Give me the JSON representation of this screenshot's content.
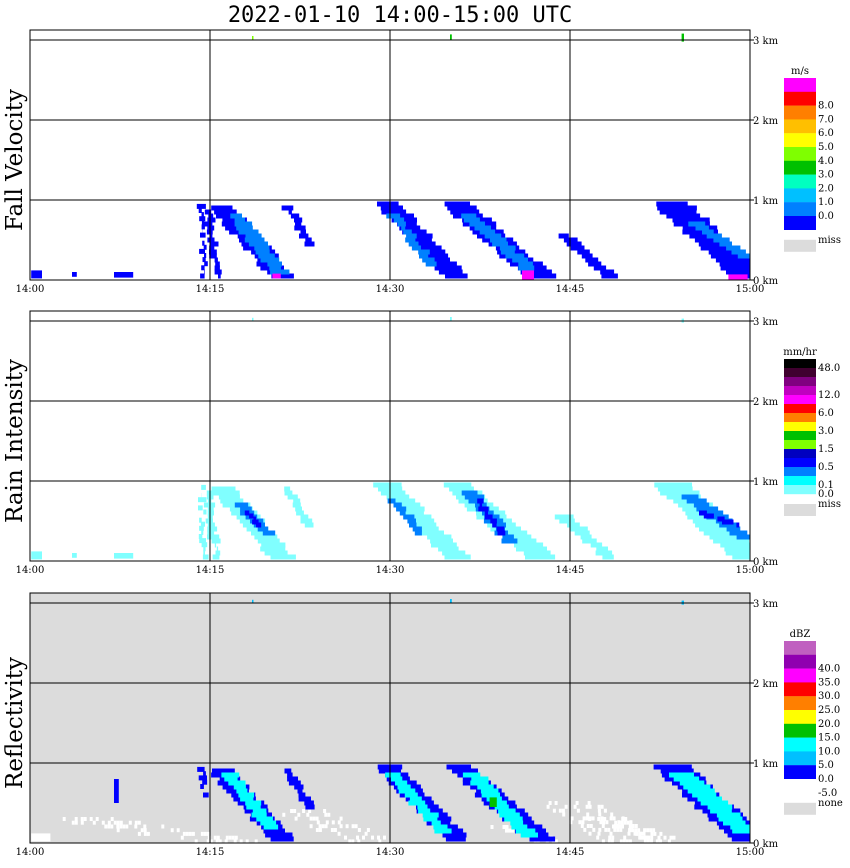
{
  "title": "2022-01-10  14:00-15:00 UTC",
  "colors": {
    "frame": "#000000",
    "missing_bg": "#dcdcdc",
    "background": "#ffffff"
  },
  "chart_data": [
    {
      "type": "heatmap",
      "ylabel": "Fall Velocity",
      "x_ticks": [
        "14:00",
        "14:15",
        "14:30",
        "14:45",
        "15:00"
      ],
      "y_ticks": [
        "0 km",
        "1 km",
        "2 km",
        "3 km"
      ],
      "xlim": [
        "14:00",
        "15:00"
      ],
      "ylim": [
        0,
        3.1
      ],
      "grid": true,
      "background": "#ffffff",
      "legend": {
        "unit": "m/s",
        "position": "right",
        "bins": [
          {
            "label": "",
            "color": "#ff00ff"
          },
          {
            "label": "8.0",
            "color": "#ff0000"
          },
          {
            "label": "7.0",
            "color": "#ff7f00"
          },
          {
            "label": "6.0",
            "color": "#ffbf00"
          },
          {
            "label": "5.0",
            "color": "#ffff00"
          },
          {
            "label": "4.0",
            "color": "#7fff00"
          },
          {
            "label": "3.0",
            "color": "#00c000"
          },
          {
            "label": "2.0",
            "color": "#00ffc0"
          },
          {
            "label": "1.0",
            "color": "#00c0ff"
          },
          {
            "label": "0.0",
            "color": "#0080ff"
          },
          {
            "label": "",
            "color": "#0000ff"
          }
        ],
        "missing_label": "miss",
        "missing_color": "#dcdcdc"
      },
      "fall_streaks": [
        {
          "t0": 14.3,
          "h0": 0.92,
          "t1": 14.5,
          "h1": 0.05,
          "w": 0.3,
          "color": "#0000ff"
        },
        {
          "t0": 14.9,
          "h0": 0.85,
          "t1": 15.3,
          "h1": 0.3,
          "w": 0.6,
          "color": "#0000ff"
        },
        {
          "t0": 15.3,
          "h0": 0.35,
          "t1": 15.7,
          "h1": 0.05,
          "w": 0.5,
          "color": "#0000ff"
        },
        {
          "t0": 16.0,
          "h0": 0.9,
          "t1": 21.0,
          "h1": 0.05,
          "w": 2.0,
          "color": "#0000ff"
        },
        {
          "t0": 17.2,
          "h0": 0.8,
          "t1": 20.8,
          "h1": 0.1,
          "w": 1.2,
          "color": "#0080ff"
        },
        {
          "t0": 21.5,
          "h0": 0.9,
          "t1": 23.3,
          "h1": 0.45,
          "w": 0.7,
          "color": "#0000ff"
        },
        {
          "t0": 29.8,
          "h0": 0.95,
          "t1": 35.5,
          "h1": 0.05,
          "w": 2.0,
          "color": "#0000ff"
        },
        {
          "t0": 30.3,
          "h0": 0.8,
          "t1": 33.5,
          "h1": 0.2,
          "w": 0.8,
          "color": "#0080ff"
        },
        {
          "t0": 35.5,
          "h0": 0.95,
          "t1": 42.5,
          "h1": 0.05,
          "w": 2.4,
          "color": "#0000ff"
        },
        {
          "t0": 36.5,
          "h0": 0.8,
          "t1": 41.5,
          "h1": 0.15,
          "w": 1.3,
          "color": "#0080ff"
        },
        {
          "t0": 44.5,
          "h0": 0.55,
          "t1": 48.3,
          "h1": 0.05,
          "w": 1.2,
          "color": "#0000ff"
        },
        {
          "t0": 53.5,
          "h0": 0.95,
          "t1": 60.0,
          "h1": 0.05,
          "w": 3.0,
          "color": "#0000ff"
        },
        {
          "t0": 55.5,
          "h0": 0.7,
          "t1": 59.5,
          "h1": 0.3,
          "w": 1.4,
          "color": "#0080ff"
        }
      ],
      "spots": [
        {
          "t": 0.1,
          "h": 0.02,
          "w": 0.9,
          "dh": 0.1,
          "color": "#0000ff"
        },
        {
          "t": 3.5,
          "h": 0.04,
          "w": 0.4,
          "dh": 0.06,
          "color": "#0000ff"
        },
        {
          "t": 7.0,
          "h": 0.03,
          "w": 1.6,
          "dh": 0.07,
          "color": "#0000ff"
        },
        {
          "t": 20.2,
          "h": 0.02,
          "w": 0.7,
          "dh": 0.06,
          "color": "#ff00ff"
        },
        {
          "t": 41.0,
          "h": 0.0,
          "w": 1.0,
          "dh": 0.12,
          "color": "#ff00ff"
        },
        {
          "t": 58.2,
          "h": 0.0,
          "w": 1.6,
          "dh": 0.07,
          "color": "#ff00ff"
        },
        {
          "t": 18.5,
          "h": 3.0,
          "w": 0.1,
          "dh": 0.05,
          "color": "#7fff00"
        },
        {
          "t": 35.0,
          "h": 3.0,
          "w": 0.15,
          "dh": 0.07,
          "color": "#00c000"
        },
        {
          "t": 54.3,
          "h": 2.98,
          "w": 0.2,
          "dh": 0.1,
          "color": "#00c000"
        }
      ]
    },
    {
      "type": "heatmap",
      "ylabel": "Rain Intensity",
      "x_ticks": [
        "14:00",
        "14:15",
        "14:30",
        "14:45",
        "15:00"
      ],
      "y_ticks": [
        "0 km",
        "1 km",
        "2 km",
        "3 km"
      ],
      "xlim": [
        "14:00",
        "15:00"
      ],
      "ylim": [
        0,
        3.1
      ],
      "grid": true,
      "background": "#ffffff",
      "legend": {
        "unit": "mm/hr",
        "position": "right",
        "bins": [
          {
            "label": "48.0",
            "color": "#000000"
          },
          {
            "label": "",
            "color": "#40002f"
          },
          {
            "label": "",
            "color": "#800080"
          },
          {
            "label": "12.0",
            "color": "#c000c0"
          },
          {
            "label": "",
            "color": "#ff00ff"
          },
          {
            "label": "6.0",
            "color": "#ff0000"
          },
          {
            "label": "",
            "color": "#ff7f00"
          },
          {
            "label": "3.0",
            "color": "#ffff00"
          },
          {
            "label": "",
            "color": "#00c000"
          },
          {
            "label": "1.5",
            "color": "#7fff00"
          },
          {
            "label": "",
            "color": "#0000c0"
          },
          {
            "label": "0.5",
            "color": "#0000ff"
          },
          {
            "label": "",
            "color": "#0080ff"
          },
          {
            "label": "0.1",
            "color": "#00ffff"
          },
          {
            "label": "0.0",
            "color": "#80ffff"
          }
        ],
        "missing_label": "miss",
        "missing_color": "#dcdcdc"
      },
      "fall_streaks": [
        {
          "t0": 14.3,
          "h0": 0.92,
          "t1": 14.5,
          "h1": 0.05,
          "w": 0.3,
          "color": "#80ffff"
        },
        {
          "t0": 14.9,
          "h0": 0.85,
          "t1": 15.3,
          "h1": 0.3,
          "w": 0.6,
          "color": "#80ffff"
        },
        {
          "t0": 15.3,
          "h0": 0.35,
          "t1": 15.7,
          "h1": 0.05,
          "w": 0.5,
          "color": "#80ffff"
        },
        {
          "t0": 16.0,
          "h0": 0.9,
          "t1": 21.0,
          "h1": 0.05,
          "w": 2.0,
          "color": "#80ffff"
        },
        {
          "t0": 17.5,
          "h0": 0.7,
          "t1": 19.8,
          "h1": 0.35,
          "w": 1.0,
          "color": "#0080ff"
        },
        {
          "t0": 18.2,
          "h0": 0.6,
          "t1": 19.0,
          "h1": 0.45,
          "w": 0.4,
          "color": "#0000ff"
        },
        {
          "t0": 21.5,
          "h0": 0.9,
          "t1": 23.3,
          "h1": 0.45,
          "w": 0.7,
          "color": "#80ffff"
        },
        {
          "t0": 29.8,
          "h0": 0.95,
          "t1": 35.5,
          "h1": 0.05,
          "w": 2.0,
          "color": "#80ffff"
        },
        {
          "t0": 30.3,
          "h0": 0.75,
          "t1": 32.5,
          "h1": 0.35,
          "w": 0.8,
          "color": "#0080ff"
        },
        {
          "t0": 35.5,
          "h0": 0.95,
          "t1": 42.5,
          "h1": 0.05,
          "w": 2.4,
          "color": "#80ffff"
        },
        {
          "t0": 36.8,
          "h0": 0.85,
          "t1": 40.0,
          "h1": 0.25,
          "w": 1.2,
          "color": "#0080ff"
        },
        {
          "t0": 37.4,
          "h0": 0.75,
          "t1": 39.2,
          "h1": 0.35,
          "w": 0.6,
          "color": "#0000ff"
        },
        {
          "t0": 44.5,
          "h0": 0.55,
          "t1": 48.3,
          "h1": 0.05,
          "w": 1.2,
          "color": "#80ffff"
        },
        {
          "t0": 53.5,
          "h0": 0.95,
          "t1": 60.0,
          "h1": 0.05,
          "w": 3.0,
          "color": "#80ffff"
        },
        {
          "t0": 55.0,
          "h0": 0.8,
          "t1": 59.5,
          "h1": 0.3,
          "w": 1.5,
          "color": "#0080ff"
        },
        {
          "t0": 56.0,
          "h0": 0.6,
          "t1": 59.0,
          "h1": 0.45,
          "w": 0.7,
          "color": "#0000ff"
        }
      ],
      "spots": [
        {
          "t": 0.1,
          "h": 0.02,
          "w": 0.9,
          "dh": 0.1,
          "color": "#80ffff"
        },
        {
          "t": 3.5,
          "h": 0.04,
          "w": 0.4,
          "dh": 0.06,
          "color": "#80ffff"
        },
        {
          "t": 7.0,
          "h": 0.03,
          "w": 1.6,
          "dh": 0.07,
          "color": "#80ffff"
        },
        {
          "t": 18.5,
          "h": 3.0,
          "w": 0.1,
          "dh": 0.04,
          "color": "#80ffff"
        },
        {
          "t": 35.0,
          "h": 3.0,
          "w": 0.15,
          "dh": 0.05,
          "color": "#80ffff"
        },
        {
          "t": 54.3,
          "h": 2.98,
          "w": 0.2,
          "dh": 0.05,
          "color": "#80ffff"
        }
      ]
    },
    {
      "type": "heatmap",
      "ylabel": "Reflectivity",
      "x_ticks": [
        "14:00",
        "14:15",
        "14:30",
        "14:45",
        "15:00"
      ],
      "y_ticks": [
        "0 km",
        "1 km",
        "2 km",
        "3 km"
      ],
      "xlim": [
        "14:00",
        "15:00"
      ],
      "ylim": [
        0,
        3.1
      ],
      "grid": true,
      "background": "#dcdcdc",
      "legend": {
        "unit": "dBZ",
        "position": "right",
        "bins": [
          {
            "label": "",
            "color": "#c060c0"
          },
          {
            "label": "40.0",
            "color": "#9000b0"
          },
          {
            "label": "35.0",
            "color": "#ff00ff"
          },
          {
            "label": "30.0",
            "color": "#ff0000"
          },
          {
            "label": "25.0",
            "color": "#ff7f00"
          },
          {
            "label": "20.0",
            "color": "#ffff00"
          },
          {
            "label": "15.0",
            "color": "#00c000"
          },
          {
            "label": "10.0",
            "color": "#00ffff"
          },
          {
            "label": "5.0",
            "color": "#00c0ff"
          },
          {
            "label": "0.0",
            "color": "#0000ff"
          },
          {
            "label": "-5.0",
            "color": "#ffffff"
          }
        ],
        "missing_label": "none",
        "missing_color": "#dcdcdc"
      },
      "fall_streaks": [
        {
          "t0": 4.5,
          "h0": 0.3,
          "t1": 16.0,
          "h1": 0.02,
          "w": 6.0,
          "color": "#ffffff",
          "sparse": true
        },
        {
          "t0": 22.5,
          "h0": 0.4,
          "t1": 28.0,
          "h1": 0.02,
          "w": 4.0,
          "color": "#ffffff",
          "sparse": true
        },
        {
          "t0": 40.0,
          "h0": 0.2,
          "t1": 43.0,
          "h1": 0.02,
          "w": 3.0,
          "color": "#ffffff",
          "sparse": true
        },
        {
          "t0": 45.0,
          "h0": 0.5,
          "t1": 50.0,
          "h1": 0.02,
          "w": 5.0,
          "color": "#ffffff",
          "sparse": true
        },
        {
          "t0": 48.0,
          "h0": 0.3,
          "t1": 53.0,
          "h1": 0.02,
          "w": 3.0,
          "color": "#ffffff",
          "sparse": true
        },
        {
          "t0": 14.3,
          "h0": 0.92,
          "t1": 14.5,
          "h1": 0.6,
          "w": 0.3,
          "color": "#0000ff"
        },
        {
          "t0": 16.0,
          "h0": 0.9,
          "t1": 21.0,
          "h1": 0.05,
          "w": 2.0,
          "color": "#0000ff"
        },
        {
          "t0": 16.6,
          "h0": 0.85,
          "t1": 20.0,
          "h1": 0.2,
          "w": 1.2,
          "color": "#00ffff"
        },
        {
          "t0": 21.5,
          "h0": 0.9,
          "t1": 23.3,
          "h1": 0.45,
          "w": 0.7,
          "color": "#0000ff"
        },
        {
          "t0": 29.8,
          "h0": 0.95,
          "t1": 35.5,
          "h1": 0.05,
          "w": 2.0,
          "color": "#0000ff"
        },
        {
          "t0": 30.2,
          "h0": 0.85,
          "t1": 34.5,
          "h1": 0.15,
          "w": 1.2,
          "color": "#00ffff"
        },
        {
          "t0": 35.8,
          "h0": 0.95,
          "t1": 42.5,
          "h1": 0.05,
          "w": 2.2,
          "color": "#0000ff"
        },
        {
          "t0": 37.0,
          "h0": 0.85,
          "t1": 41.5,
          "h1": 0.1,
          "w": 1.4,
          "color": "#00ffff"
        },
        {
          "t0": 53.5,
          "h0": 0.95,
          "t1": 60.0,
          "h1": 0.05,
          "w": 3.0,
          "color": "#0000ff"
        },
        {
          "t0": 54.5,
          "h0": 0.85,
          "t1": 59.5,
          "h1": 0.15,
          "w": 2.0,
          "color": "#00ffff"
        }
      ],
      "spots": [
        {
          "t": 0.1,
          "h": 0.02,
          "w": 1.6,
          "dh": 0.1,
          "color": "#ffffff"
        },
        {
          "t": 7.0,
          "h": 0.5,
          "w": 0.4,
          "dh": 0.3,
          "color": "#0000ff"
        },
        {
          "t": 38.3,
          "h": 0.45,
          "w": 0.6,
          "dh": 0.12,
          "color": "#00c000"
        },
        {
          "t": 18.5,
          "h": 3.0,
          "w": 0.1,
          "dh": 0.04,
          "color": "#00c0ff"
        },
        {
          "t": 35.0,
          "h": 3.0,
          "w": 0.15,
          "dh": 0.05,
          "color": "#00c0ff"
        },
        {
          "t": 54.3,
          "h": 2.98,
          "w": 0.2,
          "dh": 0.05,
          "color": "#00c0ff"
        }
      ]
    }
  ]
}
